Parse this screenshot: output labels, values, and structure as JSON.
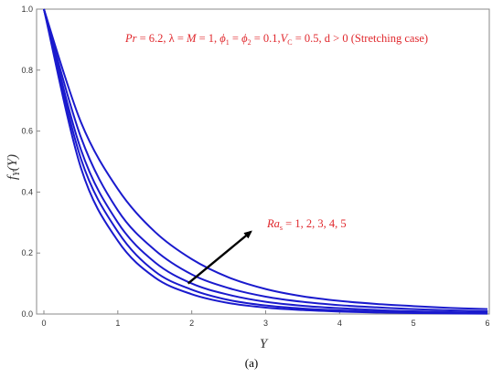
{
  "chart_data": {
    "type": "line",
    "xlabel": "Y",
    "ylabel": "f_Y(Y)",
    "xlim": [
      0,
      6
    ],
    "ylim": [
      0,
      1.0
    ],
    "xticks": [
      0,
      1,
      2,
      3,
      4,
      5,
      6
    ],
    "yticks": [
      0.0,
      0.2,
      0.4,
      0.6,
      0.8,
      1.0
    ],
    "x": [
      0,
      0.5,
      1,
      1.5,
      2,
      2.5,
      3,
      3.5,
      4,
      4.5,
      5,
      5.5,
      6
    ],
    "series": [
      {
        "values": [
          1.0,
          0.63,
          0.41,
          0.27,
          0.18,
          0.12,
          0.082,
          0.058,
          0.043,
          0.033,
          0.026,
          0.02,
          0.016
        ]
      },
      {
        "values": [
          1.0,
          0.58,
          0.34,
          0.21,
          0.13,
          0.085,
          0.057,
          0.04,
          0.029,
          0.022,
          0.016,
          0.012,
          0.009
        ]
      },
      {
        "values": [
          1.0,
          0.54,
          0.3,
          0.17,
          0.1,
          0.063,
          0.04,
          0.027,
          0.019,
          0.013,
          0.009,
          0.006,
          0.004
        ]
      },
      {
        "values": [
          1.0,
          0.51,
          0.27,
          0.14,
          0.08,
          0.046,
          0.028,
          0.018,
          0.012,
          0.008,
          0.005,
          0.003,
          0.002
        ]
      },
      {
        "values": [
          1.0,
          0.48,
          0.24,
          0.12,
          0.065,
          0.036,
          0.021,
          0.013,
          0.008,
          0.005,
          0.003,
          0.002,
          0.001
        ]
      }
    ],
    "line_color": "#1a1acd",
    "annotation_color": "#e0282d",
    "params_text": "Pr = 6.2, λ = M = 1, ϕ1 = ϕ2 = 0.1,VC = 0.5, d > 0 (Stretching case)",
    "arrow_label": "Ras = 1, 2, 3, 4, 5",
    "arrow": {
      "from": [
        1.95,
        0.1
      ],
      "to": [
        2.8,
        0.27
      ]
    }
  },
  "caption": "(a)"
}
